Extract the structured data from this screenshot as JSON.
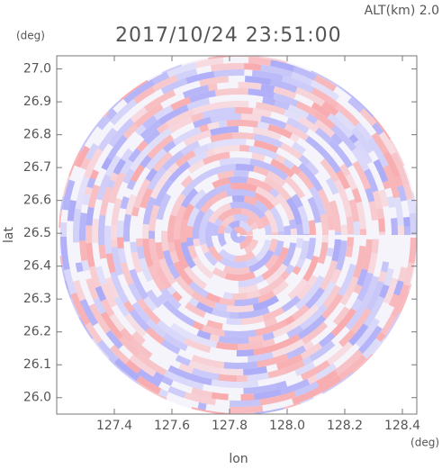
{
  "chart_data": {
    "type": "ppi",
    "title": "2017/10/24 23:51:00",
    "subtitle": "ALT(km) 2.0",
    "x_label": "lon",
    "y_label": "lat",
    "x_unit": "(deg)",
    "y_unit": "(deg)",
    "xlim": [
      127.2,
      128.45
    ],
    "ylim": [
      25.95,
      27.04
    ],
    "xticks": [
      {
        "value": 127.4,
        "label": "127.4"
      },
      {
        "value": 127.6,
        "label": "127.6"
      },
      {
        "value": 127.8,
        "label": "127.8"
      },
      {
        "value": 128.0,
        "label": "128.0"
      },
      {
        "value": 128.2,
        "label": "128.2"
      },
      {
        "value": 128.4,
        "label": "128.4"
      }
    ],
    "yticks": [
      {
        "value": 26.0,
        "label": "26.0"
      },
      {
        "value": 26.1,
        "label": "26.1"
      },
      {
        "value": 26.2,
        "label": "26.2"
      },
      {
        "value": 26.3,
        "label": "26.3"
      },
      {
        "value": 26.4,
        "label": "26.4"
      },
      {
        "value": 26.5,
        "label": "26.5"
      },
      {
        "value": 26.6,
        "label": "26.6"
      },
      {
        "value": 26.7,
        "label": "26.7"
      },
      {
        "value": 26.8,
        "label": "26.8"
      },
      {
        "value": 26.9,
        "label": "26.9"
      },
      {
        "value": 27.0,
        "label": "27.0"
      }
    ]
  }
}
